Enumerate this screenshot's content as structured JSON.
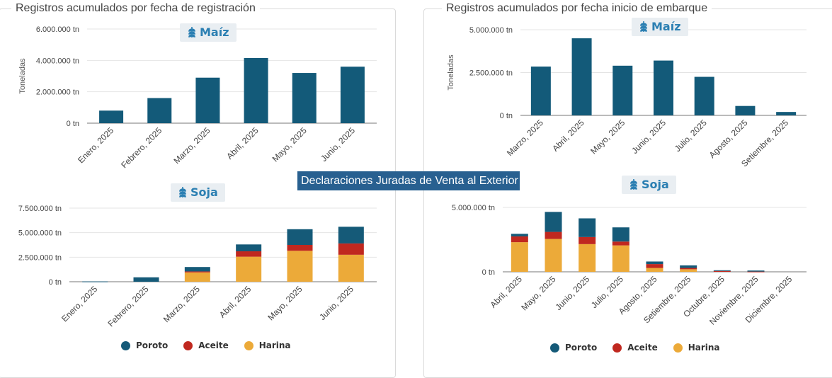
{
  "header": {
    "banner": "Declaraciones Juradas de Venta al Exterior"
  },
  "panels": {
    "left_title": "Registros acumulados por fecha de registración",
    "right_title": "Registros acumulados por fecha inicio de embarque"
  },
  "colors": {
    "maiz": "#135a79",
    "poroto": "#155a78",
    "aceite": "#c0281f",
    "harina": "#ecaa39",
    "badge_text": "#2b7fb2",
    "banner_bg": "#286090"
  },
  "badges": {
    "maiz_left": "Maíz",
    "maiz_right": "Maíz",
    "soja_left": "Soja",
    "soja_right": "Soja",
    "icon": "grain-icon"
  },
  "legend": {
    "poroto": "Poroto",
    "aceite": "Aceite",
    "harina": "Harina"
  },
  "chart_data": [
    {
      "type": "bar",
      "ylabel": "Toneladas",
      "ylim": [
        0,
        6000000
      ],
      "yticks": [
        "0 tn",
        "2.000.000 tn",
        "4.000.000 tn",
        "6.000.000 tn"
      ],
      "categories": [
        "Enero, 2025",
        "Febrero, 2025",
        "Marzo, 2025",
        "Abril, 2025",
        "Mayo, 2025",
        "Junio, 2025"
      ],
      "values": [
        800000,
        1600000,
        2900000,
        4150000,
        3200000,
        3600000
      ]
    },
    {
      "type": "bar",
      "ylabel": "Toneladas",
      "ylim": [
        0,
        5000000
      ],
      "yticks": [
        "0 tn",
        "2.500.000 tn",
        "5.000.000 tn"
      ],
      "categories": [
        "Marzo, 2025",
        "Abril, 2025",
        "Mayo, 2025",
        "Junio, 2025",
        "Julio, 2025",
        "Agosto, 2025",
        "Setiembre, 2025"
      ],
      "values": [
        2850000,
        4500000,
        2900000,
        3200000,
        2250000,
        550000,
        200000
      ]
    },
    {
      "type": "bar",
      "stacked": true,
      "ylim": [
        0,
        7500000
      ],
      "yticks": [
        "0 tn",
        "2.500.000 tn",
        "5.000.000 tn",
        "7.500.000 tn"
      ],
      "categories": [
        "Enero, 2025",
        "Febrero, 2025",
        "Marzo, 2025",
        "Abril, 2025",
        "Mayo, 2025",
        "Junio, 2025"
      ],
      "series": [
        {
          "name": "Harina",
          "values": [
            0,
            0,
            950000,
            2550000,
            3150000,
            2750000
          ]
        },
        {
          "name": "Aceite",
          "values": [
            0,
            0,
            100000,
            550000,
            600000,
            1150000
          ]
        },
        {
          "name": "Poroto",
          "values": [
            30000,
            450000,
            450000,
            700000,
            1600000,
            1700000
          ]
        }
      ],
      "legend": "bottom"
    },
    {
      "type": "bar",
      "stacked": true,
      "ylim": [
        0,
        5000000
      ],
      "yticks": [
        "0 tn",
        "5.000.000 tn"
      ],
      "categories": [
        "Abril, 2025",
        "Mayo, 2025",
        "Junio, 2025",
        "Julio, 2025",
        "Agosto, 2025",
        "Setiembre, 2025",
        "Octubre, 2025",
        "Noviembre, 2025",
        "Diciembre, 2025"
      ],
      "series": [
        {
          "name": "Harina",
          "values": [
            2300000,
            2550000,
            2150000,
            2050000,
            300000,
            200000,
            0,
            0,
            0
          ]
        },
        {
          "name": "Aceite",
          "values": [
            450000,
            550000,
            550000,
            300000,
            300000,
            100000,
            70000,
            20000,
            0
          ]
        },
        {
          "name": "Poroto",
          "values": [
            200000,
            1550000,
            1450000,
            1100000,
            200000,
            200000,
            50000,
            80000,
            0
          ]
        }
      ],
      "legend": "bottom"
    }
  ]
}
